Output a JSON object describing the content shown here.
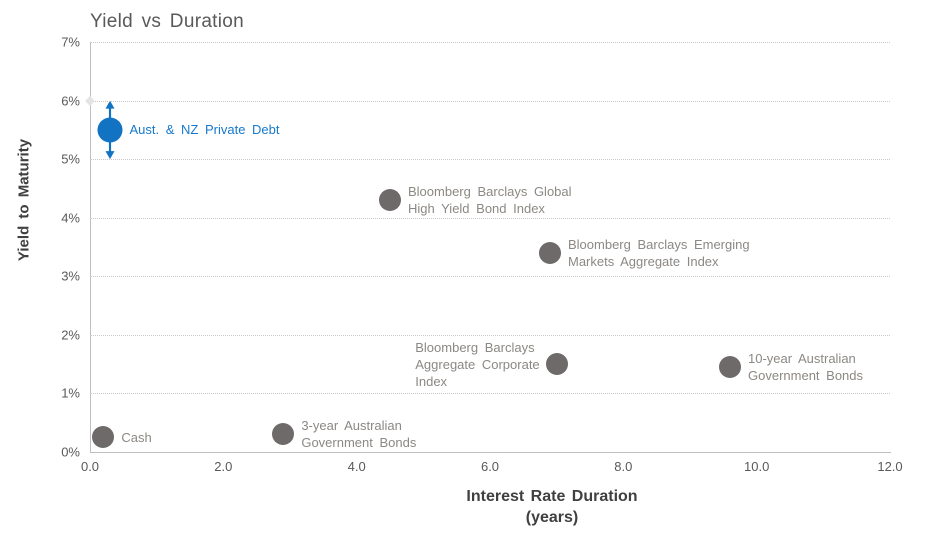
{
  "colors": {
    "highlight_blue": "#1173C2",
    "highlight_blue_text": "#1679CE",
    "index_gray": "#6E6A6A",
    "label_gray": "#8C8884",
    "title_gray": "#595959",
    "axis_title_gray": "#404040",
    "axis_line": "#BFBFBF",
    "gridline": "#C9C9C9",
    "background": "#FFFFFF"
  },
  "chart_data": {
    "type": "scatter",
    "title": "Yield vs Duration",
    "xlabel": "Interest Rate Duration",
    "xlabel_unit": "(years)",
    "ylabel": "Yield to Maturity",
    "xlim": [
      0,
      12
    ],
    "ylim": [
      0,
      7
    ],
    "x_tick_values": [
      0,
      2,
      4,
      6,
      8,
      10,
      12
    ],
    "x_tick_labels": [
      "0.0",
      "2.0",
      "4.0",
      "6.0",
      "8.0",
      "10.0",
      "12.0"
    ],
    "y_tick_values": [
      0,
      1,
      2,
      3,
      4,
      5,
      6,
      7
    ],
    "y_tick_labels": [
      "0%",
      "1%",
      "2%",
      "3%",
      "4%",
      "5%",
      "6%",
      "7%"
    ],
    "grid": "horizontal",
    "legend": "none",
    "diamond_marker": {
      "x": 0,
      "y": 6,
      "color": "#E4E4E4"
    },
    "points": [
      {
        "slug": "aust-nz-private-debt",
        "label_lines": [
          "Aust. & NZ Private Debt"
        ],
        "x": 0.3,
        "y": 5.5,
        "r": 12.5,
        "color_role": "highlight",
        "label_side": "right",
        "error_bar_y": [
          5.0,
          6.0
        ]
      },
      {
        "slug": "cash",
        "label_lines": [
          "Cash"
        ],
        "x": 0.2,
        "y": 0.25,
        "r": 11,
        "color_role": "index",
        "label_side": "right"
      },
      {
        "slug": "3-year-australian-government-bonds",
        "label_lines": [
          "3-year Australian",
          "Government Bonds"
        ],
        "x": 2.9,
        "y": 0.3,
        "r": 11,
        "color_role": "index",
        "label_side": "right"
      },
      {
        "slug": "bloomberg-barclays-global-high-yield-bond-index",
        "label_lines": [
          "Bloomberg Barclays Global",
          "High Yield Bond Index"
        ],
        "x": 4.5,
        "y": 4.3,
        "r": 11,
        "color_role": "index",
        "label_side": "right"
      },
      {
        "slug": "bloomberg-barclays-emerging-markets-aggregate-index",
        "label_lines": [
          "Bloomberg Barclays Emerging",
          "Markets Aggregate Index"
        ],
        "x": 6.9,
        "y": 3.4,
        "r": 11,
        "color_role": "index",
        "label_side": "right"
      },
      {
        "slug": "bloomberg-barclays-aggregate-corporate-index",
        "label_lines": [
          "Bloomberg Barclays",
          "Aggregate Corporate",
          "Index"
        ],
        "x": 7.0,
        "y": 1.5,
        "r": 11,
        "color_role": "index",
        "label_side": "left"
      },
      {
        "slug": "10-year-australian-government-bonds",
        "label_lines": [
          "10-year Australian",
          "Government Bonds"
        ],
        "x": 9.6,
        "y": 1.45,
        "r": 11,
        "color_role": "index",
        "label_side": "right"
      }
    ]
  }
}
